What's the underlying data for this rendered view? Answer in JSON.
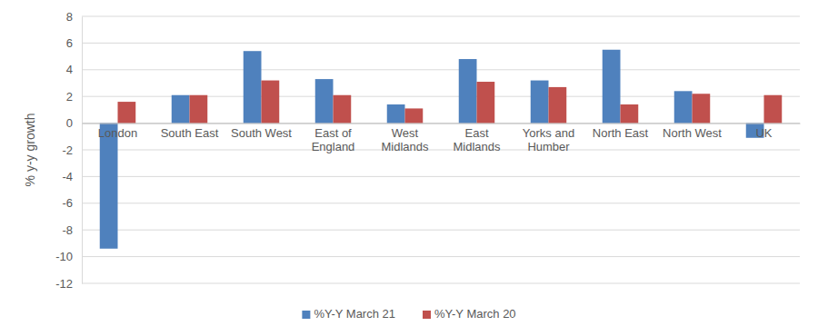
{
  "chart_data": {
    "type": "bar",
    "y_label": "% y-y growth",
    "categories": [
      "London",
      "South East",
      "South West",
      "East of England",
      "West Midlands",
      "East Midlands",
      "Yorks and Humber",
      "North East",
      "North West",
      "UK"
    ],
    "series": [
      {
        "name": "%Y-Y March 21",
        "color": "#4f81bd",
        "values": [
          -9.4,
          2.1,
          5.4,
          3.3,
          1.4,
          4.8,
          3.2,
          5.5,
          2.4,
          -1.1
        ]
      },
      {
        "name": "%Y-Y March 20",
        "color": "#c0504d",
        "values": [
          1.6,
          2.1,
          3.2,
          2.1,
          1.1,
          3.1,
          2.7,
          1.4,
          2.2,
          2.1
        ]
      }
    ],
    "ylim": [
      -12,
      8
    ],
    "yticks": [
      -12,
      -10,
      -8,
      -6,
      -4,
      -2,
      0,
      2,
      4,
      6,
      8
    ],
    "grid": true,
    "legend": "bottom"
  }
}
